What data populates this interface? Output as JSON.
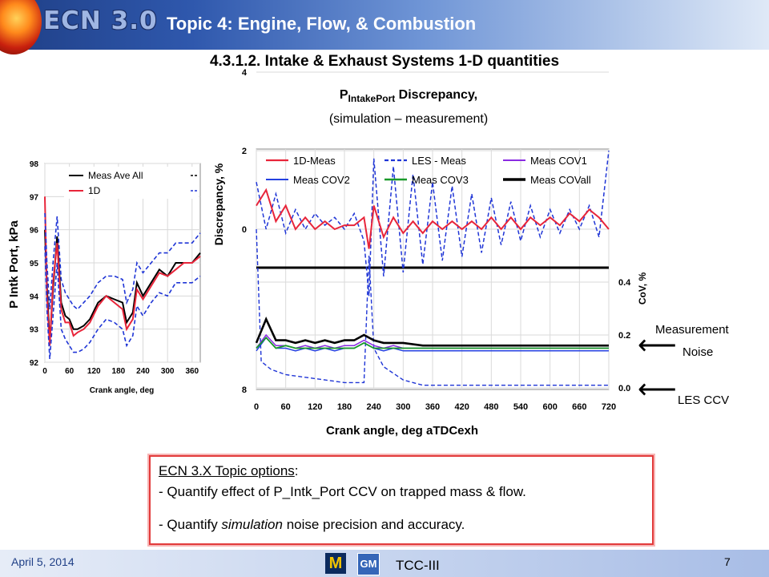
{
  "header": {
    "logo": "ECN 3.0",
    "topic": "Topic 4:  Engine, Flow, & Combustion"
  },
  "subtitle": "4.3.1.2.  Intake & Exhaust Systems 1-D quantities",
  "discrepancy_title": {
    "main": "P",
    "sub": "IntakePort",
    "rest": " Discrepancy,",
    "line2": "(simulation – measurement)"
  },
  "annotations": {
    "measurement": "Measurement",
    "noise": "Noise",
    "les_ccv": "LES CCV"
  },
  "options_box": {
    "heading": "ECN 3.X  Topic  options",
    "heading_suffix": ":",
    "line1": "- Quantify effect of  P_Intk_Port CCV on trapped mass &  flow.",
    "line2_pre": "- Quantify ",
    "line2_em": "simulation",
    "line2_post": " noise precision and accuracy."
  },
  "footer": {
    "date": "April 5, 2014",
    "brand": "TCC-III",
    "page": "7",
    "logo_um": "M",
    "logo_gm": "GM"
  },
  "colors": {
    "meas_ave": "#000000",
    "one_d": "#e8253a",
    "les": "#1f35d6",
    "cov1": "#8a2be2",
    "cov2": "#2440e0",
    "cov3": "#1a9a2a",
    "covall": "#000000"
  },
  "chart_data": [
    {
      "type": "line",
      "title": "",
      "xlabel": "Crank angle, deg",
      "ylabel": "P Intk Port,  kPa",
      "xlim": [
        0,
        380
      ],
      "ylim": [
        92,
        98
      ],
      "xticks": [
        0,
        60,
        120,
        180,
        240,
        300,
        360
      ],
      "yticks": [
        92,
        93,
        94,
        95,
        96,
        97,
        98
      ],
      "legend": [
        "Meas  Ave All",
        "1D"
      ],
      "legend_placement": "top-right",
      "series": [
        {
          "name": "Meas  Ave All",
          "style": "solid",
          "x": [
            0,
            5,
            12,
            20,
            30,
            40,
            50,
            60,
            70,
            80,
            95,
            110,
            130,
            150,
            170,
            190,
            200,
            215,
            225,
            240,
            260,
            280,
            300,
            320,
            340,
            360,
            380
          ],
          "y": [
            96.0,
            94.3,
            92.6,
            94.2,
            95.8,
            93.8,
            93.4,
            93.3,
            93.0,
            93.0,
            93.1,
            93.3,
            93.8,
            94.0,
            93.9,
            93.8,
            93.2,
            93.5,
            94.4,
            94.0,
            94.4,
            94.8,
            94.6,
            95.0,
            95.0,
            95.0,
            95.3
          ]
        },
        {
          "name": "1D",
          "style": "solid",
          "x": [
            0,
            5,
            12,
            20,
            30,
            40,
            50,
            60,
            70,
            80,
            95,
            110,
            130,
            150,
            170,
            190,
            200,
            215,
            225,
            240,
            260,
            280,
            300,
            320,
            340,
            360,
            380
          ],
          "y": [
            97.0,
            94.0,
            92.5,
            94.4,
            95.6,
            93.6,
            93.2,
            93.2,
            92.8,
            92.9,
            93.0,
            93.2,
            93.7,
            94.0,
            93.8,
            93.6,
            93.0,
            93.3,
            94.2,
            93.9,
            94.3,
            94.7,
            94.6,
            94.8,
            95.0,
            95.0,
            95.2
          ]
        },
        {
          "name": "",
          "style": "dashed",
          "x": [
            0,
            5,
            12,
            20,
            30,
            40,
            50,
            60,
            70,
            80,
            95,
            110,
            130,
            150,
            170,
            190,
            200,
            215,
            225,
            240,
            260,
            280,
            300,
            320,
            340,
            360,
            380
          ],
          "y": [
            96.5,
            95.0,
            93.6,
            95.0,
            96.4,
            94.5,
            94.1,
            93.9,
            93.7,
            93.6,
            93.8,
            94.0,
            94.4,
            94.6,
            94.6,
            94.5,
            93.8,
            94.2,
            95.0,
            94.7,
            95.0,
            95.3,
            95.3,
            95.6,
            95.6,
            95.6,
            95.9
          ]
        },
        {
          "name": "",
          "style": "dashed",
          "x": [
            0,
            5,
            12,
            20,
            30,
            40,
            50,
            60,
            70,
            80,
            95,
            110,
            130,
            150,
            170,
            190,
            200,
            215,
            225,
            240,
            260,
            280,
            300,
            320,
            340,
            360,
            380
          ],
          "y": [
            95.5,
            93.6,
            92.1,
            93.4,
            95.0,
            93.0,
            92.7,
            92.5,
            92.3,
            92.3,
            92.4,
            92.6,
            93.0,
            93.3,
            93.2,
            93.0,
            92.5,
            92.8,
            93.7,
            93.4,
            93.8,
            94.1,
            94.0,
            94.4,
            94.4,
            94.4,
            94.6
          ]
        }
      ]
    },
    {
      "type": "line",
      "title": "",
      "xlabel": "Crank angle, deg aTDCexh",
      "ylabel": "Discrepancy,  %",
      "y2label": "CoV, %",
      "xlim": [
        0,
        720
      ],
      "xticks": [
        0,
        60,
        120,
        180,
        240,
        300,
        360,
        420,
        480,
        540,
        600,
        660,
        720
      ],
      "yticks": [
        0,
        2,
        4
      ],
      "y2ticks": [
        0.0,
        0.2,
        0.4
      ],
      "bottom_label": "8",
      "legend": [
        "1D-Meas",
        "LES - Meas",
        "Meas  COV1",
        "Meas  COV2",
        "Meas  COV3",
        "Meas  COVall"
      ],
      "legend_placement": "top",
      "series": [
        {
          "name": "1D-Meas",
          "style": "solid",
          "axis": "left",
          "x": [
            0,
            20,
            40,
            60,
            80,
            100,
            120,
            140,
            160,
            180,
            200,
            220,
            230,
            240,
            260,
            280,
            300,
            320,
            340,
            360,
            380,
            400,
            420,
            440,
            460,
            480,
            500,
            520,
            540,
            560,
            580,
            600,
            620,
            640,
            660,
            680,
            700,
            720
          ],
          "y": [
            0.6,
            1.0,
            0.2,
            0.6,
            0.0,
            0.3,
            0.0,
            0.2,
            0.0,
            0.1,
            0.1,
            0.3,
            -0.5,
            0.6,
            -0.2,
            0.3,
            -0.1,
            0.2,
            -0.1,
            0.2,
            0.0,
            0.2,
            0.0,
            0.2,
            0.0,
            0.3,
            0.0,
            0.3,
            0.0,
            0.3,
            0.1,
            0.3,
            0.1,
            0.4,
            0.2,
            0.5,
            0.3,
            0.0
          ]
        },
        {
          "name": "LES - Meas",
          "style": "dashed",
          "axis": "left",
          "x": [
            0,
            20,
            40,
            60,
            80,
            100,
            120,
            140,
            160,
            180,
            200,
            220,
            230,
            240,
            260,
            280,
            300,
            320,
            340,
            360,
            380,
            400,
            420,
            440,
            460,
            480,
            500,
            520,
            540,
            560,
            580,
            600,
            620,
            640,
            660,
            680,
            700,
            720
          ],
          "y": [
            1.2,
            0.0,
            0.9,
            -0.1,
            0.5,
            0.0,
            0.4,
            0.1,
            0.3,
            0.0,
            0.4,
            -0.3,
            -1.7,
            1.8,
            -1.2,
            1.6,
            -1.1,
            1.4,
            -0.9,
            1.2,
            -0.8,
            1.1,
            -0.7,
            0.9,
            -0.6,
            0.8,
            -0.4,
            0.7,
            -0.3,
            0.6,
            -0.2,
            0.5,
            -0.1,
            0.5,
            0.0,
            0.6,
            -0.2,
            2.0
          ]
        },
        {
          "name": "Meas  COV1",
          "style": "solid",
          "axis": "right",
          "x": [
            0,
            20,
            40,
            60,
            80,
            100,
            120,
            140,
            160,
            180,
            200,
            220,
            240,
            260,
            280,
            300,
            340,
            380,
            420,
            460,
            500,
            540,
            580,
            620,
            660,
            700,
            720
          ],
          "y": [
            0.15,
            0.2,
            0.16,
            0.16,
            0.15,
            0.16,
            0.15,
            0.16,
            0.15,
            0.16,
            0.16,
            0.18,
            0.16,
            0.15,
            0.16,
            0.15,
            0.15,
            0.15,
            0.15,
            0.15,
            0.15,
            0.15,
            0.15,
            0.15,
            0.15,
            0.15,
            0.15
          ]
        },
        {
          "name": "Meas  COV2",
          "style": "solid",
          "axis": "right",
          "x": [
            0,
            20,
            40,
            60,
            80,
            100,
            120,
            140,
            160,
            180,
            200,
            220,
            240,
            260,
            280,
            300,
            340,
            380,
            420,
            460,
            500,
            540,
            580,
            620,
            660,
            700,
            720
          ],
          "y": [
            0.14,
            0.19,
            0.15,
            0.15,
            0.14,
            0.15,
            0.14,
            0.15,
            0.14,
            0.15,
            0.15,
            0.17,
            0.15,
            0.14,
            0.15,
            0.14,
            0.14,
            0.14,
            0.14,
            0.14,
            0.14,
            0.14,
            0.14,
            0.14,
            0.14,
            0.14,
            0.14
          ]
        },
        {
          "name": "Meas  COV3",
          "style": "solid",
          "axis": "right",
          "x": [
            0,
            20,
            40,
            60,
            80,
            100,
            120,
            140,
            160,
            180,
            200,
            220,
            240,
            260,
            280,
            300,
            340,
            380,
            420,
            460,
            500,
            540,
            580,
            620,
            660,
            700,
            720
          ],
          "y": [
            0.15,
            0.19,
            0.15,
            0.16,
            0.15,
            0.15,
            0.15,
            0.15,
            0.15,
            0.15,
            0.15,
            0.17,
            0.15,
            0.15,
            0.15,
            0.15,
            0.15,
            0.15,
            0.15,
            0.15,
            0.15,
            0.15,
            0.15,
            0.15,
            0.15,
            0.15,
            0.15
          ]
        },
        {
          "name": "Meas  COVall",
          "style": "solid",
          "axis": "right",
          "x": [
            0,
            20,
            40,
            60,
            80,
            100,
            120,
            140,
            160,
            180,
            200,
            220,
            240,
            260,
            280,
            300,
            340,
            380,
            420,
            460,
            500,
            540,
            580,
            620,
            660,
            700,
            720
          ],
          "y": [
            0.17,
            0.26,
            0.18,
            0.18,
            0.17,
            0.18,
            0.17,
            0.18,
            0.17,
            0.18,
            0.18,
            0.2,
            0.18,
            0.17,
            0.17,
            0.17,
            0.16,
            0.16,
            0.16,
            0.16,
            0.16,
            0.16,
            0.16,
            0.16,
            0.16,
            0.16,
            0.16
          ]
        },
        {
          "name": "LES CCV",
          "style": "dashed",
          "axis": "right",
          "x": [
            0,
            10,
            30,
            60,
            100,
            140,
            180,
            220,
            230,
            240,
            260,
            300,
            340,
            380,
            420,
            460,
            500,
            540,
            580,
            620,
            660,
            700,
            720
          ],
          "y": [
            0.6,
            0.1,
            0.07,
            0.05,
            0.04,
            0.03,
            0.02,
            0.02,
            0.5,
            0.15,
            0.08,
            0.03,
            0.01,
            0.01,
            0.01,
            0.01,
            0.01,
            0.01,
            0.01,
            0.01,
            0.01,
            0.01,
            0.01
          ]
        }
      ]
    }
  ]
}
